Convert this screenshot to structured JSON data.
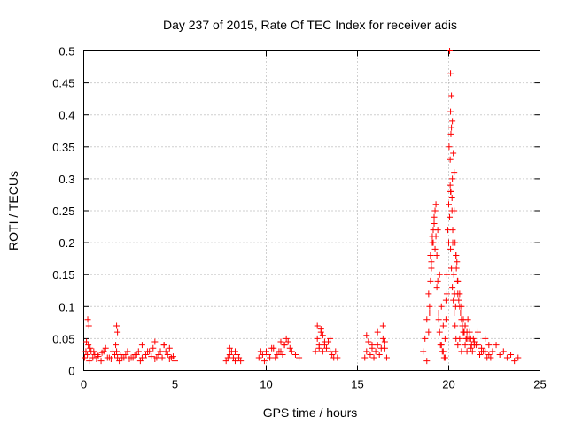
{
  "chart_data": {
    "type": "scatter",
    "title": "Day 237 of 2015, Rate Of TEC Index for receiver adis",
    "xlabel": "GPS time / hours",
    "ylabel": "ROTI / TECUs",
    "xlim": [
      0,
      25
    ],
    "ylim": [
      0,
      0.5
    ],
    "xticks": [
      "0",
      "5",
      "10",
      "15",
      "20",
      "25"
    ],
    "yticks": [
      "0",
      "0.05",
      "0.1",
      "0.15",
      "0.2",
      "0.25",
      "0.3",
      "0.35",
      "0.4",
      "0.45",
      "0.5"
    ],
    "grid": true,
    "marker": "plus",
    "color": "#ff0000",
    "series": [
      {
        "name": "ROTI",
        "x": [
          0.05,
          0.12,
          0.2,
          0.3,
          0.4,
          0.5,
          0.6,
          0.7,
          0.8,
          0.95,
          1.1,
          1.3,
          1.5,
          1.7,
          1.8,
          1.85,
          1.95,
          2.1,
          2.3,
          2.5,
          2.7,
          2.9,
          3.1,
          3.3,
          3.5,
          3.7,
          3.9,
          4.1,
          4.3,
          4.5,
          4.7,
          4.9,
          5.0,
          0.15,
          0.25,
          0.35,
          0.55,
          0.75,
          1.0,
          1.2,
          1.4,
          1.6,
          1.75,
          2.0,
          2.2,
          2.4,
          2.6,
          2.8,
          3.0,
          3.2,
          3.4,
          3.6,
          3.8,
          4.0,
          4.2,
          4.4,
          4.6,
          4.8,
          0.22,
          0.28,
          1.8,
          1.85,
          3.2,
          3.9,
          4.4,
          4.7,
          7.8,
          7.9,
          8.0,
          8.1,
          8.2,
          8.3,
          8.4,
          8.5,
          8.6,
          8.0,
          8.3,
          9.6,
          9.8,
          10.0,
          10.2,
          10.4,
          10.6,
          10.8,
          11.0,
          11.2,
          11.4,
          11.6,
          11.8,
          9.7,
          9.9,
          10.1,
          10.3,
          10.5,
          10.7,
          10.9,
          11.1,
          11.3,
          10.8,
          11.0,
          12.7,
          12.8,
          12.9,
          13.0,
          13.1,
          13.2,
          13.3,
          13.4,
          13.5,
          13.6,
          13.7,
          13.8,
          13.9,
          12.8,
          13.0,
          13.2,
          13.5,
          12.9,
          13.1,
          15.4,
          15.5,
          15.6,
          15.7,
          15.8,
          15.9,
          16.0,
          16.1,
          16.2,
          16.3,
          16.4,
          16.5,
          16.6,
          15.5,
          15.8,
          16.1,
          16.4,
          16.5,
          18.6,
          18.7,
          18.8,
          18.9,
          19.0,
          19.1,
          19.2,
          19.3,
          19.4,
          19.5,
          19.6,
          19.7,
          19.8,
          19.9,
          20.0,
          20.1,
          20.2,
          20.3,
          20.4,
          20.5,
          20.6,
          20.7,
          20.8,
          20.9,
          21.0,
          21.2,
          21.4,
          21.6,
          21.8,
          22.0,
          22.2,
          22.4,
          22.6,
          22.8,
          23.0,
          23.2,
          23.4,
          23.6,
          23.8,
          18.8,
          18.9,
          18.95,
          19.0,
          19.05,
          19.1,
          19.15,
          19.2,
          19.25,
          19.3,
          19.35,
          19.4,
          19.45,
          19.5,
          19.6,
          19.7,
          19.8,
          19.85,
          19.9,
          19.95,
          20.0,
          20.05,
          20.1,
          20.15,
          20.2,
          20.25,
          20.3,
          20.35,
          20.4,
          20.5,
          20.6,
          20.7,
          20.8,
          20.9,
          21.0,
          21.1,
          21.2,
          21.3,
          21.5,
          21.7,
          21.9,
          22.1,
          22.3,
          18.95,
          19.05,
          19.15,
          19.25,
          19.35,
          19.45,
          19.55,
          19.65,
          19.75,
          19.85,
          20.02,
          20.08,
          20.12,
          20.18,
          20.22,
          20.28,
          20.32,
          20.38,
          20.42,
          20.48,
          20.55,
          20.65,
          20.75,
          20.85,
          20.95,
          21.05,
          21.15,
          21.25,
          21.35,
          20.05,
          20.1,
          20.15,
          20.1,
          20.2,
          20.15,
          20.12,
          20.25,
          20.3,
          20.08,
          20.18,
          20.22,
          20.35,
          20.4,
          20.45,
          20.5,
          20.6,
          20.7,
          20.8,
          20.9,
          21.0,
          21.2,
          21.4,
          21.6,
          21.8,
          22.0,
          22.2
        ],
        "y": [
          0.02,
          0.03,
          0.025,
          0.015,
          0.03,
          0.02,
          0.025,
          0.018,
          0.022,
          0.015,
          0.03,
          0.02,
          0.018,
          0.025,
          0.03,
          0.02,
          0.015,
          0.02,
          0.025,
          0.018,
          0.02,
          0.025,
          0.015,
          0.02,
          0.03,
          0.022,
          0.018,
          0.025,
          0.02,
          0.03,
          0.018,
          0.022,
          0.015,
          0.045,
          0.04,
          0.035,
          0.03,
          0.025,
          0.028,
          0.035,
          0.02,
          0.03,
          0.04,
          0.025,
          0.02,
          0.03,
          0.02,
          0.025,
          0.03,
          0.02,
          0.025,
          0.03,
          0.035,
          0.02,
          0.03,
          0.04,
          0.025,
          0.02,
          0.08,
          0.07,
          0.07,
          0.06,
          0.04,
          0.045,
          0.04,
          0.035,
          0.015,
          0.02,
          0.025,
          0.03,
          0.02,
          0.015,
          0.025,
          0.02,
          0.015,
          0.035,
          0.03,
          0.02,
          0.025,
          0.03,
          0.02,
          0.035,
          0.025,
          0.03,
          0.04,
          0.045,
          0.03,
          0.025,
          0.02,
          0.03,
          0.015,
          0.025,
          0.035,
          0.02,
          0.03,
          0.025,
          0.05,
          0.035,
          0.045,
          0.04,
          0.03,
          0.05,
          0.04,
          0.06,
          0.055,
          0.04,
          0.035,
          0.045,
          0.03,
          0.025,
          0.02,
          0.03,
          0.02,
          0.07,
          0.065,
          0.045,
          0.05,
          0.035,
          0.03,
          0.02,
          0.03,
          0.045,
          0.025,
          0.035,
          0.02,
          0.03,
          0.04,
          0.025,
          0.035,
          0.05,
          0.045,
          0.02,
          0.055,
          0.04,
          0.06,
          0.07,
          0.035,
          0.03,
          0.05,
          0.08,
          0.12,
          0.18,
          0.21,
          0.24,
          0.26,
          0.22,
          0.15,
          0.1,
          0.07,
          0.05,
          0.12,
          0.2,
          0.28,
          0.3,
          0.25,
          0.18,
          0.12,
          0.1,
          0.08,
          0.06,
          0.07,
          0.05,
          0.05,
          0.04,
          0.06,
          0.03,
          0.05,
          0.04,
          0.03,
          0.04,
          0.025,
          0.03,
          0.02,
          0.025,
          0.015,
          0.02,
          0.015,
          0.06,
          0.1,
          0.14,
          0.17,
          0.2,
          0.22,
          0.23,
          0.25,
          0.21,
          0.18,
          0.14,
          0.09,
          0.06,
          0.04,
          0.03,
          0.02,
          0.08,
          0.15,
          0.22,
          0.26,
          0.24,
          0.19,
          0.16,
          0.13,
          0.11,
          0.09,
          0.07,
          0.05,
          0.04,
          0.05,
          0.03,
          0.06,
          0.04,
          0.03,
          0.05,
          0.035,
          0.03,
          0.04,
          0.025,
          0.03,
          0.02,
          0.02,
          0.09,
          0.16,
          0.2,
          0.19,
          0.13,
          0.08,
          0.04,
          0.03,
          0.02,
          0.11,
          0.35,
          0.33,
          0.28,
          0.27,
          0.2,
          0.15,
          0.12,
          0.1,
          0.16,
          0.14,
          0.11,
          0.09,
          0.07,
          0.06,
          0.05,
          0.08,
          0.06,
          0.04,
          0.05,
          0.5,
          0.465,
          0.43,
          0.405,
          0.39,
          0.38,
          0.37,
          0.34,
          0.31,
          0.29,
          0.25,
          0.22,
          0.2,
          0.18,
          0.17,
          0.14,
          0.12,
          0.1,
          0.08,
          0.07,
          0.06,
          0.05,
          0.045,
          0.04,
          0.035,
          0.03,
          0.025
        ]
      }
    ]
  }
}
